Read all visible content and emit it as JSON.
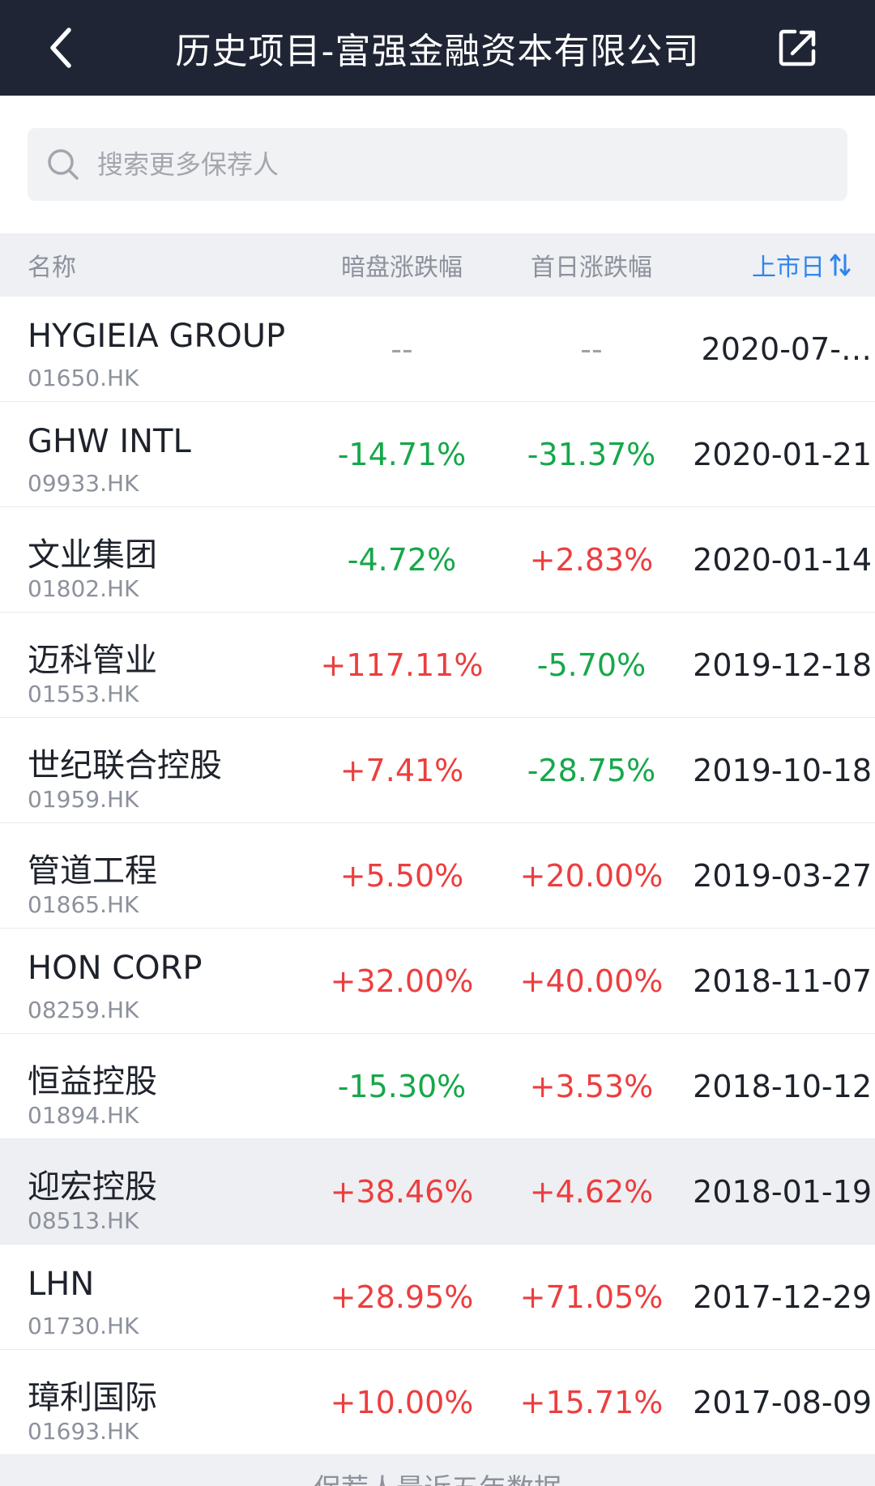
{
  "topbar": {
    "title": "历史项目-富强金融资本有限公司",
    "back_icon": "chevron-left-icon",
    "share_icon": "share-icon"
  },
  "search": {
    "placeholder": "搜索更多保荐人",
    "value": "",
    "icon": "search-icon"
  },
  "table": {
    "headers": {
      "name": "名称",
      "grey_market": "暗盘涨跌幅",
      "first_day": "首日涨跌幅",
      "listing_date": "上市日"
    },
    "sort_icon": "sort-arrows-icon",
    "rows": [
      {
        "name": "HYGIEIA GROUP",
        "code": "01650.HK",
        "grey": "--",
        "first": "--",
        "date": "2020-07-…"
      },
      {
        "name": "GHW INTL",
        "code": "09933.HK",
        "grey": "-14.71%",
        "first": "-31.37%",
        "date": "2020-01-21"
      },
      {
        "name": "文业集团",
        "code": "01802.HK",
        "grey": "-4.72%",
        "first": "+2.83%",
        "date": "2020-01-14"
      },
      {
        "name": "迈科管业",
        "code": "01553.HK",
        "grey": "+117.11%",
        "first": "-5.70%",
        "date": "2019-12-18"
      },
      {
        "name": "世纪联合控股",
        "code": "01959.HK",
        "grey": "+7.41%",
        "first": "-28.75%",
        "date": "2019-10-18"
      },
      {
        "name": "管道工程",
        "code": "01865.HK",
        "grey": "+5.50%",
        "first": "+20.00%",
        "date": "2019-03-27"
      },
      {
        "name": "HON CORP",
        "code": "08259.HK",
        "grey": "+32.00%",
        "first": "+40.00%",
        "date": "2018-11-07"
      },
      {
        "name": "恒益控股",
        "code": "01894.HK",
        "grey": "-15.30%",
        "first": "+3.53%",
        "date": "2018-10-12"
      },
      {
        "name": "迎宏控股",
        "code": "08513.HK",
        "grey": "+38.46%",
        "first": "+4.62%",
        "date": "2018-01-19",
        "highlighted": true
      },
      {
        "name": "LHN",
        "code": "01730.HK",
        "grey": "+28.95%",
        "first": "+71.05%",
        "date": "2017-12-29"
      },
      {
        "name": "璋利国际",
        "code": "01693.HK",
        "grey": "+10.00%",
        "first": "+15.71%",
        "date": "2017-08-09"
      }
    ]
  },
  "footer": {
    "note": "保荐人最近五年数据"
  },
  "colors": {
    "topbar_bg": "#1f2535",
    "up": "#ec3e3f",
    "down": "#15a84a",
    "accent": "#2f86ec"
  }
}
